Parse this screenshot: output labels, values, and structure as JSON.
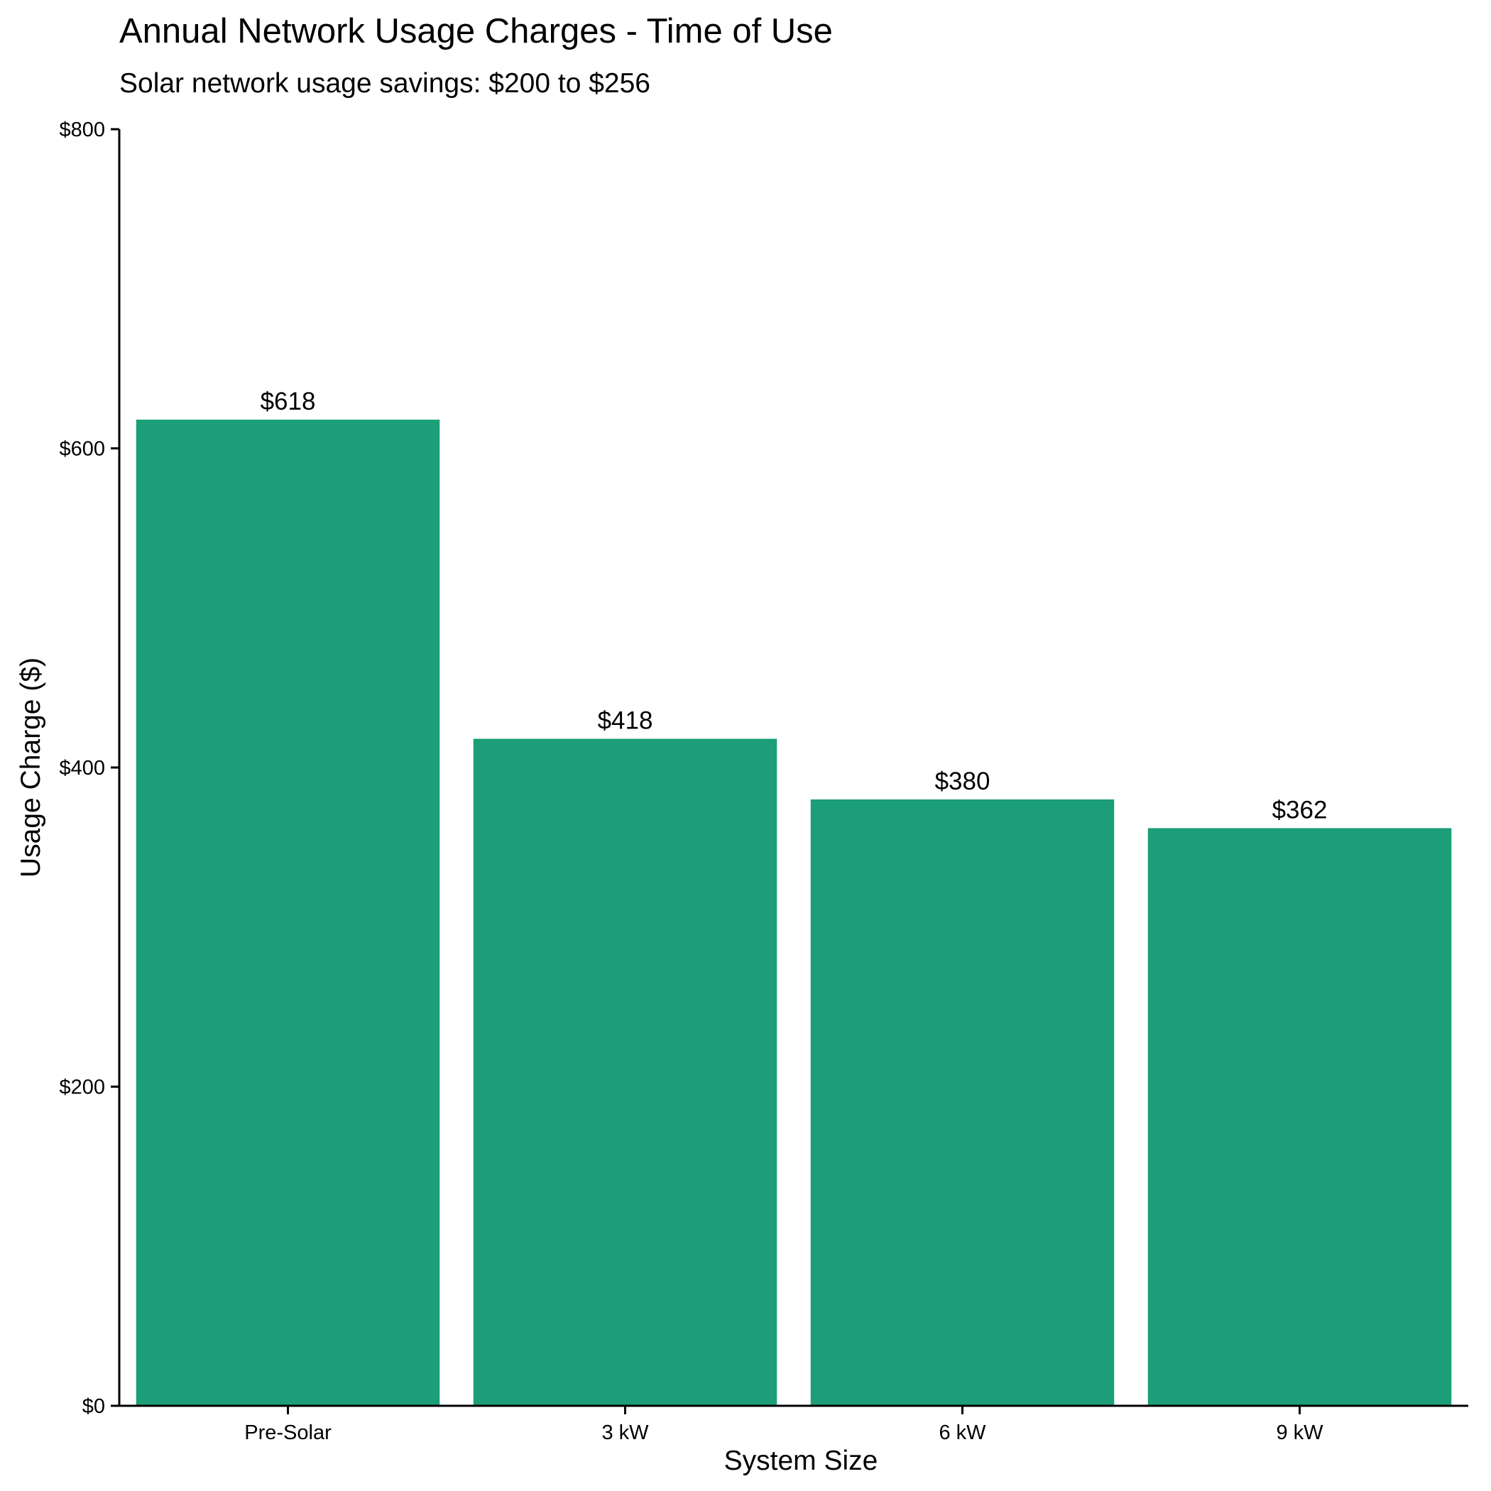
{
  "chart_data": {
    "type": "bar",
    "title": "Annual Network Usage Charges - Time of Use",
    "subtitle": "Solar network usage savings: $200 to $256",
    "xlabel": "System Size",
    "ylabel": "Usage Charge ($)",
    "categories": [
      "Pre-Solar",
      "3 kW",
      "6 kW",
      "9 kW"
    ],
    "values": [
      618,
      418,
      380,
      362
    ],
    "data_labels": [
      "$618",
      "$418",
      "$380",
      "$362"
    ],
    "ylim": [
      0,
      800
    ],
    "yticks": [
      0,
      200,
      400,
      600,
      800
    ],
    "ytick_labels": [
      "$0",
      "$200",
      "$400",
      "$600",
      "$800"
    ],
    "grid": false,
    "legend": "none",
    "bar_color": "#1c9e78"
  }
}
